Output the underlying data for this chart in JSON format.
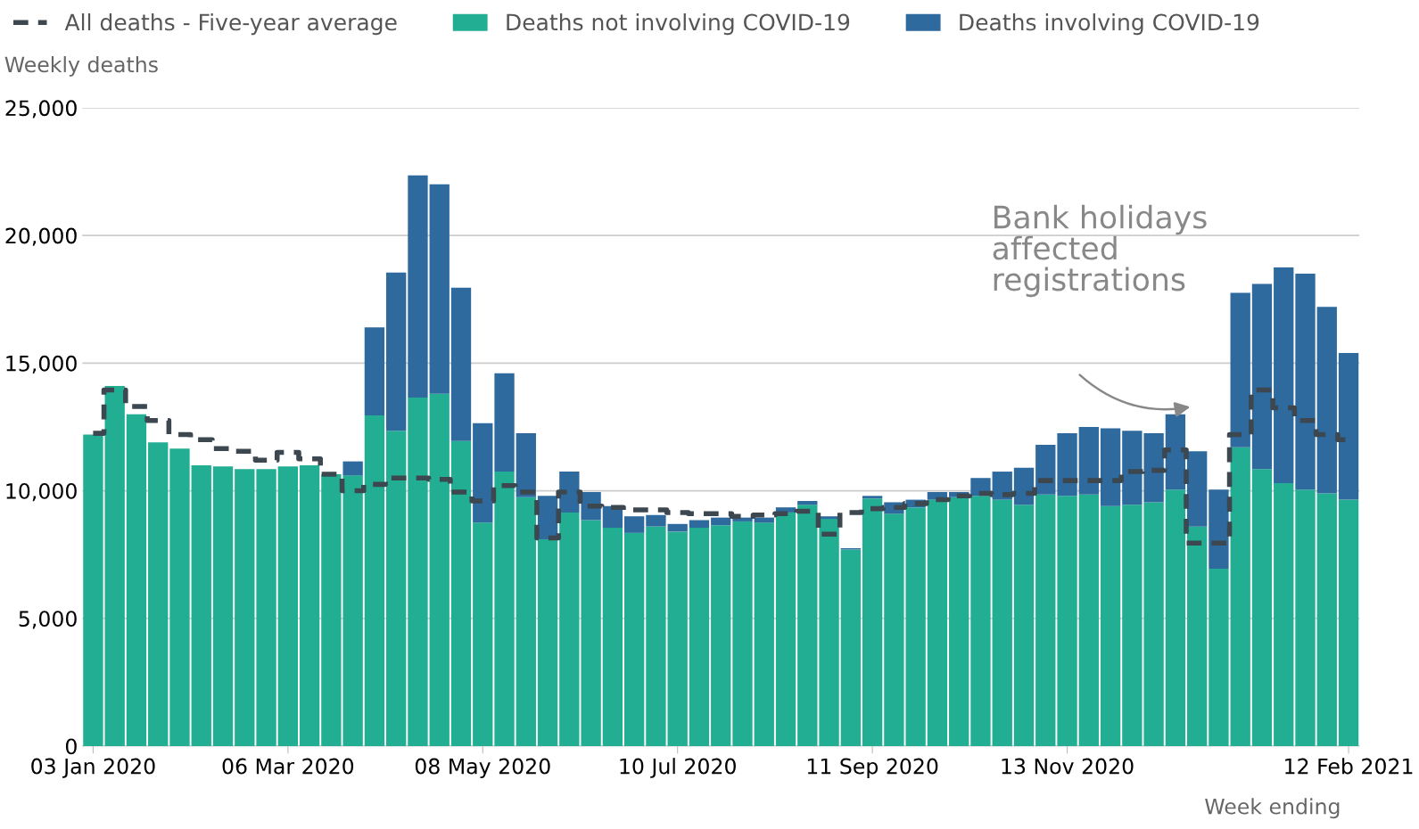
{
  "chart_data": {
    "type": "bar",
    "stacked": true,
    "ylabel": "Weekly deaths",
    "xlabel": "Week ending",
    "categories": [
      "03 Jan 2020",
      null,
      null,
      null,
      null,
      null,
      null,
      null,
      null,
      "06 Mar 2020",
      null,
      null,
      null,
      null,
      null,
      null,
      null,
      null,
      "08 May 2020",
      null,
      null,
      null,
      null,
      null,
      null,
      null,
      null,
      "10 Jul 2020",
      null,
      null,
      null,
      null,
      null,
      null,
      null,
      null,
      "11 Sep 2020",
      null,
      null,
      null,
      null,
      null,
      null,
      null,
      null,
      "13 Nov 2020",
      null,
      null,
      null,
      null,
      null,
      null,
      null,
      null,
      null,
      null,
      null,
      null,
      "12 Feb 2021"
    ],
    "series": [
      {
        "name": "All deaths - Five-year average",
        "type": "step",
        "line_style": "dashed",
        "color": "#3c474f",
        "values": [
          12250,
          13950,
          13300,
          12750,
          12200,
          12000,
          11650,
          11550,
          11200,
          11500,
          11250,
          10650,
          10000,
          10250,
          10500,
          10500,
          10450,
          9950,
          9600,
          10200,
          9950,
          8150,
          9950,
          9400,
          9350,
          9250,
          9250,
          9150,
          9100,
          9100,
          9000,
          9050,
          9100,
          9200,
          8300,
          9150,
          9300,
          9350,
          9500,
          9650,
          9800,
          9900,
          9850,
          9900,
          10400,
          10400,
          10400,
          10400,
          10750,
          10800,
          11600,
          7950,
          7950,
          12200,
          13950,
          13250,
          12750,
          12200,
          12000
        ]
      },
      {
        "name": "Deaths not involving COVID-19",
        "color": "#22ae93",
        "values": [
          12200,
          14100,
          13000,
          11900,
          11650,
          11000,
          10950,
          10850,
          10850,
          10950,
          11000,
          10650,
          10600,
          12950,
          12350,
          13650,
          13800,
          11950,
          8750,
          10750,
          9750,
          8100,
          9150,
          8850,
          8550,
          8350,
          8600,
          8400,
          8550,
          8650,
          8800,
          8750,
          9150,
          9450,
          8900,
          7700,
          9700,
          9100,
          9350,
          9650,
          9750,
          9800,
          9650,
          9450,
          9850,
          9800,
          9850,
          9400,
          9450,
          9550,
          10050,
          8600,
          6950,
          11700,
          10850,
          10300,
          10050,
          9900,
          9650
        ]
      },
      {
        "name": "Deaths involving COVID-19",
        "color": "#2e6a9e",
        "values": [
          0,
          0,
          0,
          0,
          0,
          0,
          0,
          0,
          0,
          0,
          0,
          0,
          550,
          3450,
          6200,
          8700,
          8200,
          6000,
          3900,
          3850,
          2500,
          1700,
          1600,
          1100,
          850,
          650,
          450,
          300,
          300,
          300,
          150,
          200,
          200,
          150,
          100,
          50,
          100,
          450,
          300,
          300,
          200,
          700,
          1100,
          1450,
          1950,
          2450,
          2650,
          3050,
          2900,
          2700,
          2950,
          2950,
          3100,
          6050,
          7250,
          8450,
          8450,
          7300,
          5750
        ]
      }
    ],
    "ylim": [
      0,
      25000
    ],
    "yticks": [
      {
        "value": 0,
        "label": "0"
      },
      {
        "value": 5000,
        "label": "5,000"
      },
      {
        "value": 10000,
        "label": "10,000"
      },
      {
        "value": 15000,
        "label": "15,000"
      },
      {
        "value": 20000,
        "label": "20,000"
      },
      {
        "value": 25000,
        "label": "25,000"
      }
    ],
    "grid": "y",
    "legend": "top left",
    "annotations": [
      "Bank holidays\naffected\nregistrations"
    ]
  }
}
